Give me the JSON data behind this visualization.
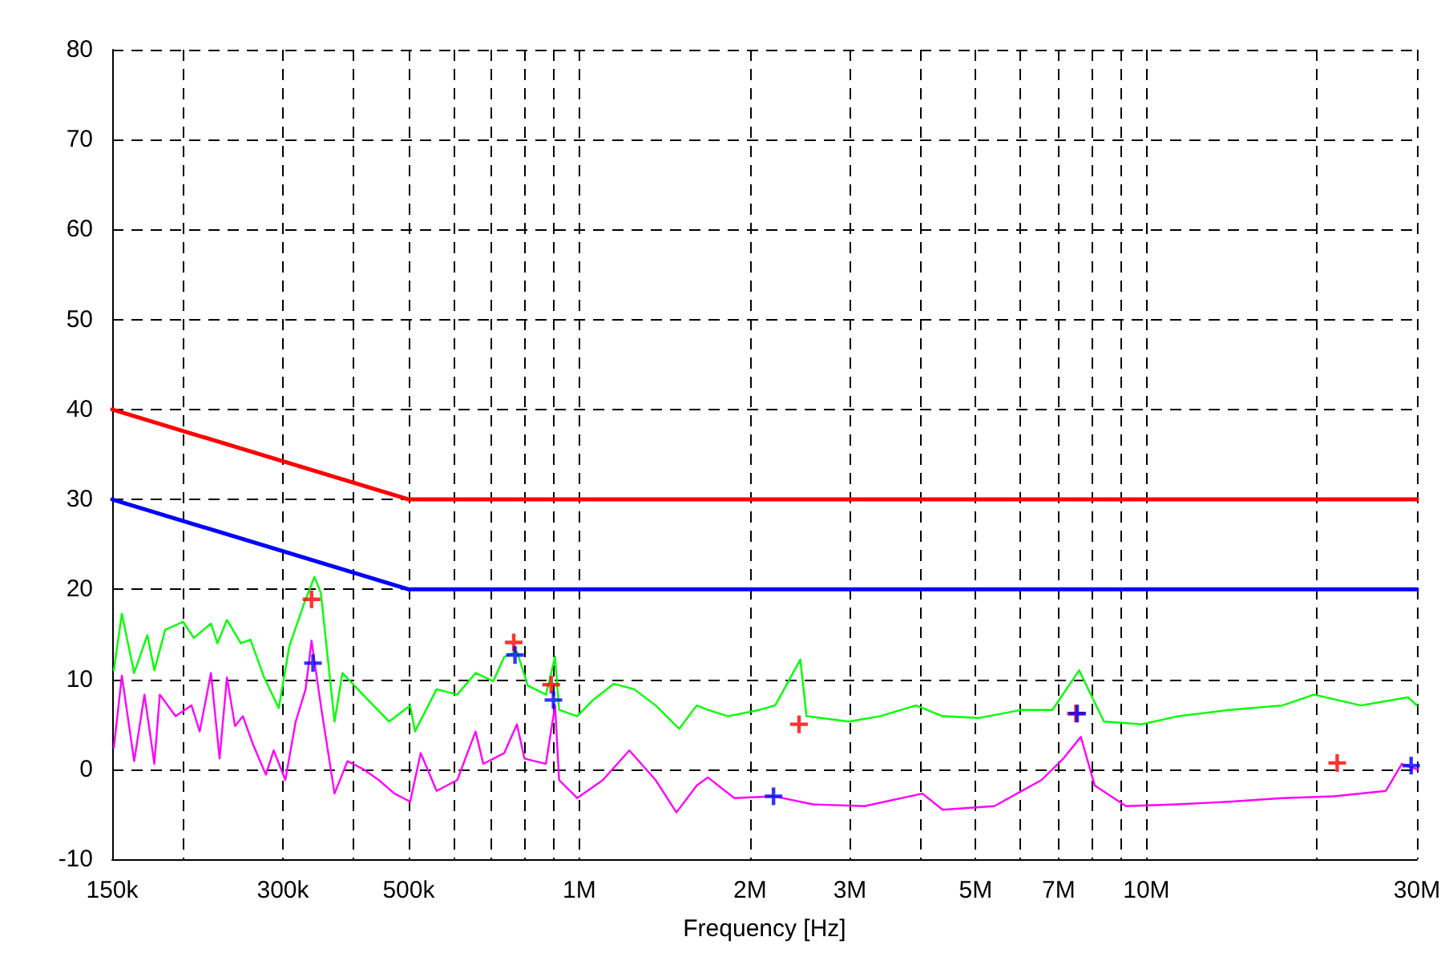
{
  "chart_data": {
    "type": "line",
    "xlabel": "Frequency [Hz]",
    "log": "x",
    "grid": true,
    "marker": "none",
    "line_style": "solid",
    "xlim": [
      150000,
      30000000
    ],
    "xticks": [
      {
        "value": 150000,
        "label": "150k"
      },
      {
        "value": 200000,
        "label": null
      },
      {
        "value": 300000,
        "label": "300k"
      },
      {
        "value": 400000,
        "label": null
      },
      {
        "value": 500000,
        "label": "500k"
      },
      {
        "value": 600000,
        "label": null
      },
      {
        "value": 700000,
        "label": null
      },
      {
        "value": 800000,
        "label": null
      },
      {
        "value": 900000,
        "label": null
      },
      {
        "value": 1000000,
        "label": "1M"
      },
      {
        "value": 2000000,
        "label": "2M"
      },
      {
        "value": 3000000,
        "label": "3M"
      },
      {
        "value": 4000000,
        "label": null
      },
      {
        "value": 5000000,
        "label": "5M"
      },
      {
        "value": 6000000,
        "label": null
      },
      {
        "value": 7000000,
        "label": "7M"
      },
      {
        "value": 8000000,
        "label": null
      },
      {
        "value": 9000000,
        "label": null
      },
      {
        "value": 10000000,
        "label": "10M"
      },
      {
        "value": 20000000,
        "label": null
      },
      {
        "value": 30000000,
        "label": "30M"
      }
    ],
    "ylim": [
      -10,
      80
    ],
    "yticks": [
      -10,
      0,
      10,
      20,
      30,
      40,
      50,
      60,
      70,
      80
    ],
    "series": [
      {
        "color": "#00ff00",
        "x": [
          151000,
          156000,
          164000,
          173000,
          178000,
          186000,
          200000,
          209000,
          224000,
          230000,
          239000,
          253000,
          263000,
          278000,
          295000,
          308000,
          326000,
          341000,
          350000,
          370000,
          382000,
          424000,
          462000,
          503000,
          513000,
          560000,
          609000,
          656000,
          705000,
          737000,
          776000,
          811000,
          873000,
          906000,
          921000,
          991000,
          1057000,
          1150000,
          1249000,
          1363000,
          1500000,
          1611000,
          1685000,
          1829000,
          2078000,
          2215000,
          2453000,
          2515000,
          2987000,
          3390000,
          3923000,
          4371000,
          5062000,
          6011000,
          6826000,
          7609000,
          8417000,
          9811000,
          11360000,
          14000000,
          17380000,
          19760000,
          23880000,
          28930000,
          30000000
        ],
        "values": [
          11.0,
          17.3,
          10.7,
          14.9,
          11.0,
          15.5,
          16.4,
          14.6,
          16.2,
          14.0,
          16.6,
          14.0,
          14.4,
          10.2,
          6.8,
          13.7,
          18.2,
          21.4,
          19.6,
          5.3,
          10.7,
          7.7,
          5.3,
          7.1,
          4.2,
          8.9,
          8.3,
          10.7,
          9.8,
          12.5,
          13.1,
          9.3,
          8.3,
          12.5,
          6.6,
          5.9,
          7.7,
          9.5,
          8.9,
          7.1,
          4.5,
          7.1,
          6.6,
          5.9,
          6.6,
          7.1,
          12.2,
          5.9,
          5.3,
          5.9,
          7.1,
          5.9,
          5.7,
          6.6,
          6.6,
          11.0,
          5.3,
          5.0,
          5.9,
          6.6,
          7.1,
          8.3,
          7.1,
          8.0,
          7.1
        ]
      },
      {
        "color": "#ff00ff",
        "x": [
          151000,
          156000,
          164000,
          171000,
          178000,
          182000,
          194000,
          207000,
          214000,
          224000,
          232000,
          239000,
          247000,
          255000,
          266000,
          280000,
          289000,
          303000,
          316000,
          329000,
          337000,
          350000,
          370000,
          390000,
          416000,
          443000,
          472000,
          503000,
          525000,
          560000,
          609000,
          656000,
          677000,
          737000,
          776000,
          800000,
          873000,
          906000,
          921000,
          991000,
          1100000,
          1225000,
          1363000,
          1483000,
          1611000,
          1685000,
          1876000,
          2201000,
          2580000,
          3184000,
          4027000,
          4371000,
          5395000,
          6530000,
          7139000,
          7662000,
          8107000,
          9204000,
          11360000,
          14000000,
          17380000,
          21440000,
          26450000,
          28210000,
          30000000
        ],
        "values": [
          2.4,
          10.4,
          0.9,
          8.3,
          0.6,
          8.3,
          5.9,
          7.1,
          4.2,
          10.7,
          1.2,
          10.2,
          4.8,
          5.9,
          2.7,
          -0.6,
          2.1,
          -1.2,
          5.3,
          8.9,
          14.3,
          7.1,
          -2.7,
          0.9,
          0,
          -1.2,
          -2.7,
          -3.6,
          1.8,
          -2.4,
          -1.2,
          4.2,
          0.6,
          1.8,
          5.0,
          1.2,
          0.6,
          7.1,
          -1.2,
          -3.2,
          -1.2,
          2.1,
          -1.2,
          -4.8,
          -1.8,
          -0.9,
          -3.2,
          -3.0,
          -3.9,
          -4.1,
          -2.7,
          -4.5,
          -4.1,
          -1.2,
          1.2,
          3.6,
          -1.8,
          -4.1,
          -3.9,
          -3.6,
          -3.2,
          -3.0,
          -2.4,
          0.6,
          0
        ]
      },
      {
        "color": "#ff0000",
        "x": [
          150000,
          500000,
          30000000
        ],
        "values": [
          40,
          30,
          30
        ]
      },
      {
        "color": "#0000ff",
        "x": [
          150000,
          500000,
          30000000
        ],
        "values": [
          30,
          20,
          20
        ]
      },
      {
        "type": "scatter",
        "marker": "cross",
        "color": "#ff0000",
        "x": [
          337000,
          766000,
          892000,
          2440000,
          7510000,
          21700000
        ],
        "values": [
          18.9,
          14.1,
          9.4,
          5.0,
          6.2,
          0.7
        ]
      },
      {
        "type": "scatter",
        "marker": "cross",
        "color": "#0000ff",
        "x": [
          339000,
          770000,
          900000,
          2200000,
          7550000,
          29300000
        ],
        "values": [
          11.8,
          12.7,
          7.7,
          -3.0,
          6.2,
          0.4
        ]
      }
    ]
  }
}
